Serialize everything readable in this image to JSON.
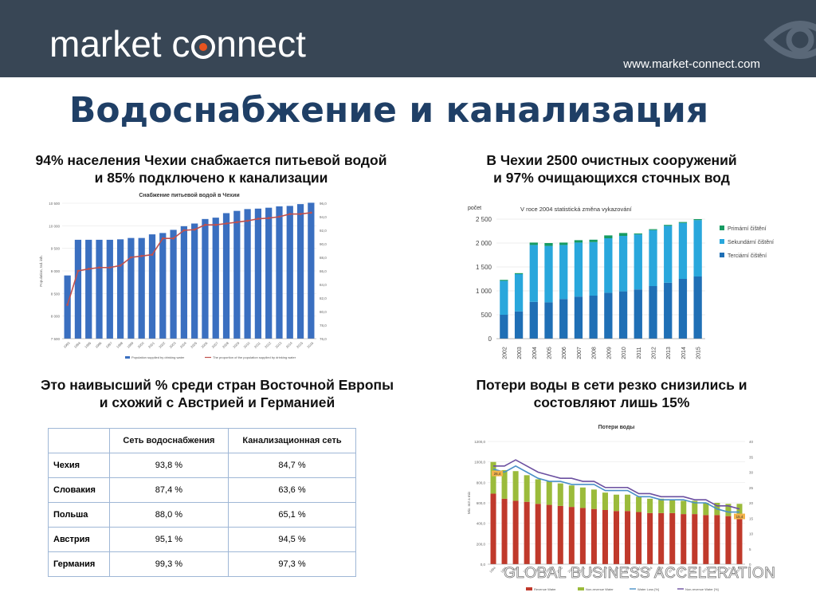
{
  "header": {
    "logo_text_pre": "market c",
    "logo_text_post": "nnect",
    "url": "www.market-connect.com",
    "colors": {
      "bg": "#384655",
      "accent": "#e8541f",
      "title": "#1f3f66"
    }
  },
  "title": "Водоснабжение и канализация",
  "captions": {
    "tl_line1": "94% населения Чехии снабжается питьевой водой",
    "tl_line2": "и 85% подключено к канализации",
    "tr_line1": "В Чехии 2500 очистных сооружений",
    "tr_line2": "и 97% очищающихся сточных вод",
    "bl_line1": "Это наивысший % среди стран Восточной Европы",
    "bl_line2": "и схожий с Австрией и Германией",
    "br_line1": "Потери воды в сети резко снизились и",
    "br_line2": "состовляют лишь 15%"
  },
  "table": {
    "headers": [
      "",
      "Сеть водоснабжения",
      "Канализационная сеть"
    ],
    "rows": [
      [
        "Чехия",
        "93,8 %",
        "84,7 %"
      ],
      [
        "Словакия",
        "87,4 %",
        "63,6 %"
      ],
      [
        "Польша",
        "88,0 %",
        "65,1 %"
      ],
      [
        "Австрия",
        "95,1 %",
        "94,5 %"
      ],
      [
        "Германия",
        "99,3  %",
        "97,3 %"
      ]
    ]
  },
  "footer_text": "GLOBAL BUSINESS ACCELERATION",
  "chart_data": [
    {
      "type": "bar",
      "title": "Снабжение питьевой водой в Чехии",
      "xlabel": "",
      "ylabel": "Population, tsd. inh.",
      "categories": [
        "1993",
        "1994",
        "1995",
        "1996",
        "1997",
        "1998",
        "1999",
        "2000",
        "2001",
        "2002",
        "2003",
        "2004",
        "2005",
        "2006",
        "2007",
        "2008",
        "2009",
        "2010",
        "2011",
        "2012",
        "2013",
        "2014",
        "2015",
        "2016"
      ],
      "ylim": [
        7500,
        10500
      ],
      "yticks": [
        "7 500",
        "8 000",
        "8 500",
        "9 000",
        "9 500",
        "10 000",
        "10 500"
      ],
      "y2lim": [
        76.0,
        96.0
      ],
      "y2ticks": [
        "76,0",
        "78,0",
        "80,0",
        "82,0",
        "84,0",
        "86,0",
        "88,0",
        "90,0",
        "92,0",
        "94,0",
        "96,0"
      ],
      "series": [
        {
          "name": "Population supplied by drinking water",
          "type": "bar",
          "color": "#3a6fc0",
          "values": [
            8900,
            9690,
            9690,
            9690,
            9690,
            9700,
            9730,
            9730,
            9810,
            9840,
            9910,
            9990,
            10050,
            10150,
            10180,
            10280,
            10330,
            10370,
            10380,
            10400,
            10430,
            10440,
            10480,
            10510
          ]
        },
        {
          "name": "The proportion of the population supplied by drinking water",
          "type": "line",
          "color": "#c0504d",
          "axis": "y2",
          "values": [
            81.0,
            86.0,
            86.3,
            86.5,
            86.5,
            86.8,
            88.0,
            88.2,
            88.4,
            90.8,
            90.8,
            92.0,
            92.1,
            92.8,
            92.8,
            93.0,
            93.2,
            93.4,
            93.7,
            93.8,
            94.0,
            94.4,
            94.4,
            94.6
          ]
        }
      ]
    },
    {
      "type": "bar",
      "title": "V roce 2004 statistická změna vykazování",
      "ylabel": "počet",
      "categories": [
        "2002",
        "2003",
        "2004",
        "2005",
        "2006",
        "2007",
        "2008",
        "2009",
        "2010",
        "2011",
        "2012",
        "2013",
        "2014",
        "2015"
      ],
      "ylim": [
        0,
        2500
      ],
      "yticks": [
        "0",
        "500",
        "1 000",
        "1 500",
        "2 000",
        "2 500"
      ],
      "legend": "right",
      "series": [
        {
          "name": "Terciární čištění",
          "color": "#1f6fb5",
          "values": [
            500,
            570,
            770,
            760,
            830,
            880,
            900,
            960,
            990,
            1030,
            1100,
            1170,
            1250,
            1300
          ]
        },
        {
          "name": "Sekundární čištění",
          "color": "#29a7dc",
          "values": [
            710,
            780,
            1190,
            1180,
            1130,
            1130,
            1120,
            1140,
            1160,
            1150,
            1170,
            1190,
            1170,
            1180
          ]
        },
        {
          "name": "Primární čištění",
          "color": "#169b62",
          "values": [
            20,
            20,
            50,
            60,
            50,
            50,
            50,
            60,
            60,
            20,
            20,
            20,
            20,
            20
          ]
        }
      ]
    },
    {
      "type": "bar",
      "title": "Потери воды",
      "ylabel": "Mio. m3 a mio",
      "categories": [
        "1994",
        "1995",
        "1996",
        "1997",
        "1998",
        "1999",
        "2000",
        "2001",
        "2002",
        "2003",
        "2004",
        "2005",
        "2006",
        "2007",
        "2008",
        "2009",
        "2010",
        "2011",
        "2012",
        "2013",
        "2014",
        "2015",
        "2016"
      ],
      "ylim": [
        0,
        1200
      ],
      "yticks": [
        "0,0",
        "200,0",
        "400,0",
        "600,0",
        "800,0",
        "1000,0",
        "1200,0"
      ],
      "y2lim": [
        0,
        40
      ],
      "y2ticks": [
        "0",
        "5",
        "10",
        "15",
        "20",
        "25",
        "30",
        "35",
        "40"
      ],
      "legend": "bottom",
      "annotations": [
        "26,4",
        "15,4"
      ],
      "series": [
        {
          "name": "Revenue Water",
          "type": "bar",
          "color": "#c0392b",
          "values": [
            690,
            640,
            620,
            610,
            590,
            580,
            570,
            560,
            550,
            540,
            530,
            520,
            520,
            510,
            500,
            500,
            500,
            490,
            490,
            480,
            480,
            470,
            470
          ]
        },
        {
          "name": "Non-revenue Water",
          "type": "bar",
          "color": "#9bbb3b",
          "values": [
            310,
            280,
            290,
            260,
            240,
            230,
            220,
            210,
            200,
            190,
            170,
            160,
            160,
            150,
            140,
            140,
            130,
            130,
            130,
            120,
            120,
            120,
            120
          ]
        },
        {
          "name": "Water Loss [%]",
          "type": "line",
          "color": "#4a90c8",
          "axis": "y2",
          "values": [
            31,
            30,
            32,
            30,
            28,
            27,
            27,
            26,
            26,
            26,
            24,
            24,
            24,
            22,
            22,
            21,
            21,
            21,
            20,
            20,
            18,
            17,
            17
          ]
        },
        {
          "name": "Non-revenue Water [%]",
          "type": "line",
          "color": "#6b4fa0",
          "axis": "y2",
          "values": [
            32,
            32,
            34,
            32,
            30,
            29,
            28,
            28,
            27,
            27,
            25,
            25,
            25,
            23,
            23,
            22,
            22,
            22,
            21,
            21,
            19,
            19,
            18
          ]
        }
      ]
    }
  ]
}
